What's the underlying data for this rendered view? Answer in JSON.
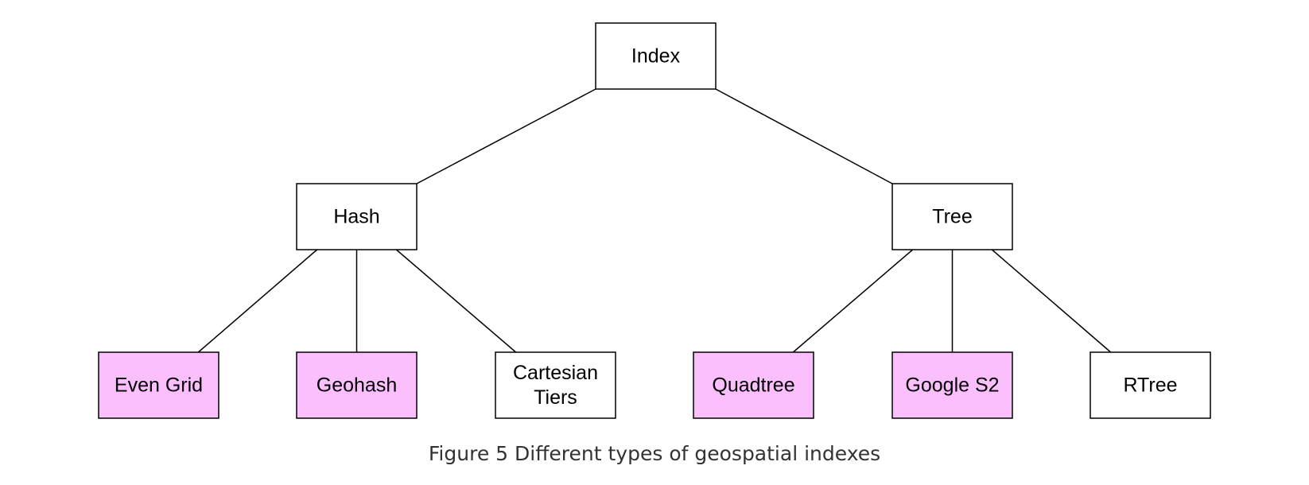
{
  "colors": {
    "highlight": "#fbbffd",
    "default": "#ffffff",
    "border": "#000000"
  },
  "nodes": {
    "index": {
      "label": [
        "Index"
      ],
      "highlighted": false
    },
    "hash": {
      "label": [
        "Hash"
      ],
      "highlighted": false
    },
    "tree": {
      "label": [
        "Tree"
      ],
      "highlighted": false
    },
    "even_grid": {
      "label": [
        "Even Grid"
      ],
      "highlighted": true
    },
    "geohash": {
      "label": [
        "Geohash"
      ],
      "highlighted": true
    },
    "cartesian_tiers": {
      "label": [
        "Cartesian",
        "Tiers"
      ],
      "highlighted": false
    },
    "quadtree": {
      "label": [
        "Quadtree"
      ],
      "highlighted": true
    },
    "google_s2": {
      "label": [
        "Google S2"
      ],
      "highlighted": true
    },
    "rtree": {
      "label": [
        "RTree"
      ],
      "highlighted": false
    }
  },
  "edges": [
    [
      "index",
      "hash"
    ],
    [
      "index",
      "tree"
    ],
    [
      "hash",
      "even_grid"
    ],
    [
      "hash",
      "geohash"
    ],
    [
      "hash",
      "cartesian_tiers"
    ],
    [
      "tree",
      "quadtree"
    ],
    [
      "tree",
      "google_s2"
    ],
    [
      "tree",
      "rtree"
    ]
  ],
  "caption": "Figure 5 Different types of geospatial indexes"
}
